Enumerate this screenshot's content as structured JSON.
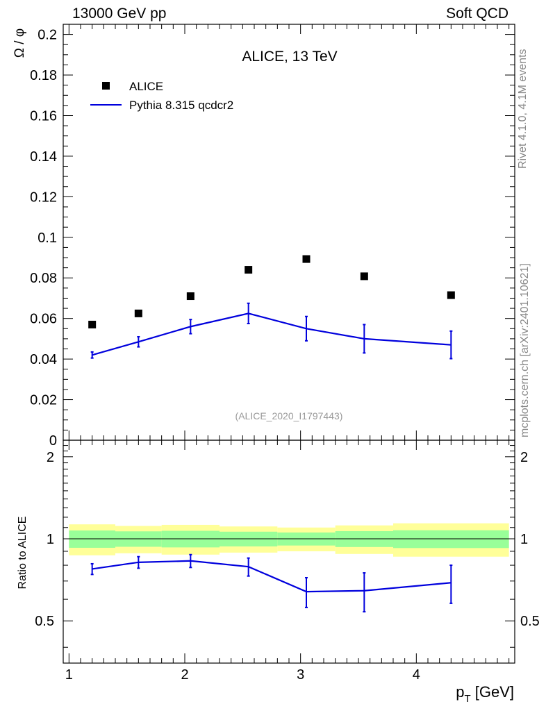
{
  "header": {
    "left": "13000 GeV pp",
    "right": "Soft QCD"
  },
  "side_labels": {
    "rivet": "Rivet 4.1.0,  4.1M events",
    "source": "mcplots.cern.ch [arXiv:2401.10621]"
  },
  "colors": {
    "data": "#000000",
    "mc": "#0000dd",
    "band_inner": "#99ff99",
    "band_outer": "#ffff99"
  },
  "chart_data": [
    {
      "type": "scatter",
      "panel": "main",
      "title": "ALICE, 13 TeV",
      "watermark": "(ALICE_2020_I1797443)",
      "ylabel": "Ω / φ",
      "xlabel": "",
      "xlim": [
        0.95,
        4.85
      ],
      "ylim": [
        0,
        0.205
      ],
      "ytick_labels": [
        "0",
        "0.02",
        "0.04",
        "0.06",
        "0.08",
        "0.1",
        "0.12",
        "0.14",
        "0.16",
        "0.18",
        "0.2"
      ],
      "legend": {
        "position": "top-left",
        "entries": [
          "ALICE",
          "Pythia 8.315 qcdcr2"
        ]
      },
      "series": [
        {
          "name": "ALICE",
          "style": "markers",
          "x": [
            1.2,
            1.6,
            2.05,
            2.55,
            3.05,
            3.55,
            4.3
          ],
          "y": [
            0.057,
            0.0625,
            0.071,
            0.084,
            0.0893,
            0.0808,
            0.0715
          ]
        },
        {
          "name": "Pythia 8.315 qcdcr2",
          "style": "line",
          "x": [
            1.2,
            1.6,
            2.05,
            2.55,
            3.05,
            3.55,
            4.3
          ],
          "y": [
            0.042,
            0.0485,
            0.056,
            0.0625,
            0.055,
            0.05,
            0.047
          ],
          "err": [
            0.0015,
            0.0025,
            0.0035,
            0.005,
            0.006,
            0.007,
            0.0068
          ]
        }
      ]
    },
    {
      "type": "line",
      "panel": "ratio",
      "ylabel": "Ratio to ALICE",
      "xlabel": "p_T [GeV]",
      "xlim": [
        0.95,
        4.85
      ],
      "ylim": [
        0.35,
        2.3
      ],
      "ytick_labels": [
        "0.5",
        "1",
        "2"
      ],
      "xtick_labels": [
        "1",
        "2",
        "3",
        "4"
      ],
      "bands": {
        "edges": [
          1.0,
          1.4,
          1.8,
          2.3,
          2.8,
          3.3,
          3.8,
          4.8
        ],
        "inner": [
          0.073,
          0.065,
          0.07,
          0.062,
          0.055,
          0.067,
          0.075
        ],
        "outer": [
          0.13,
          0.115,
          0.125,
          0.11,
          0.1,
          0.12,
          0.14
        ]
      },
      "series": [
        {
          "name": "Pythia 8.315 qcdcr2",
          "x": [
            1.2,
            1.6,
            2.05,
            2.55,
            3.05,
            3.55,
            4.3
          ],
          "y": [
            0.775,
            0.82,
            0.83,
            0.79,
            0.64,
            0.645,
            0.69
          ],
          "err": [
            0.035,
            0.04,
            0.045,
            0.06,
            0.08,
            0.105,
            0.11
          ]
        }
      ]
    }
  ]
}
